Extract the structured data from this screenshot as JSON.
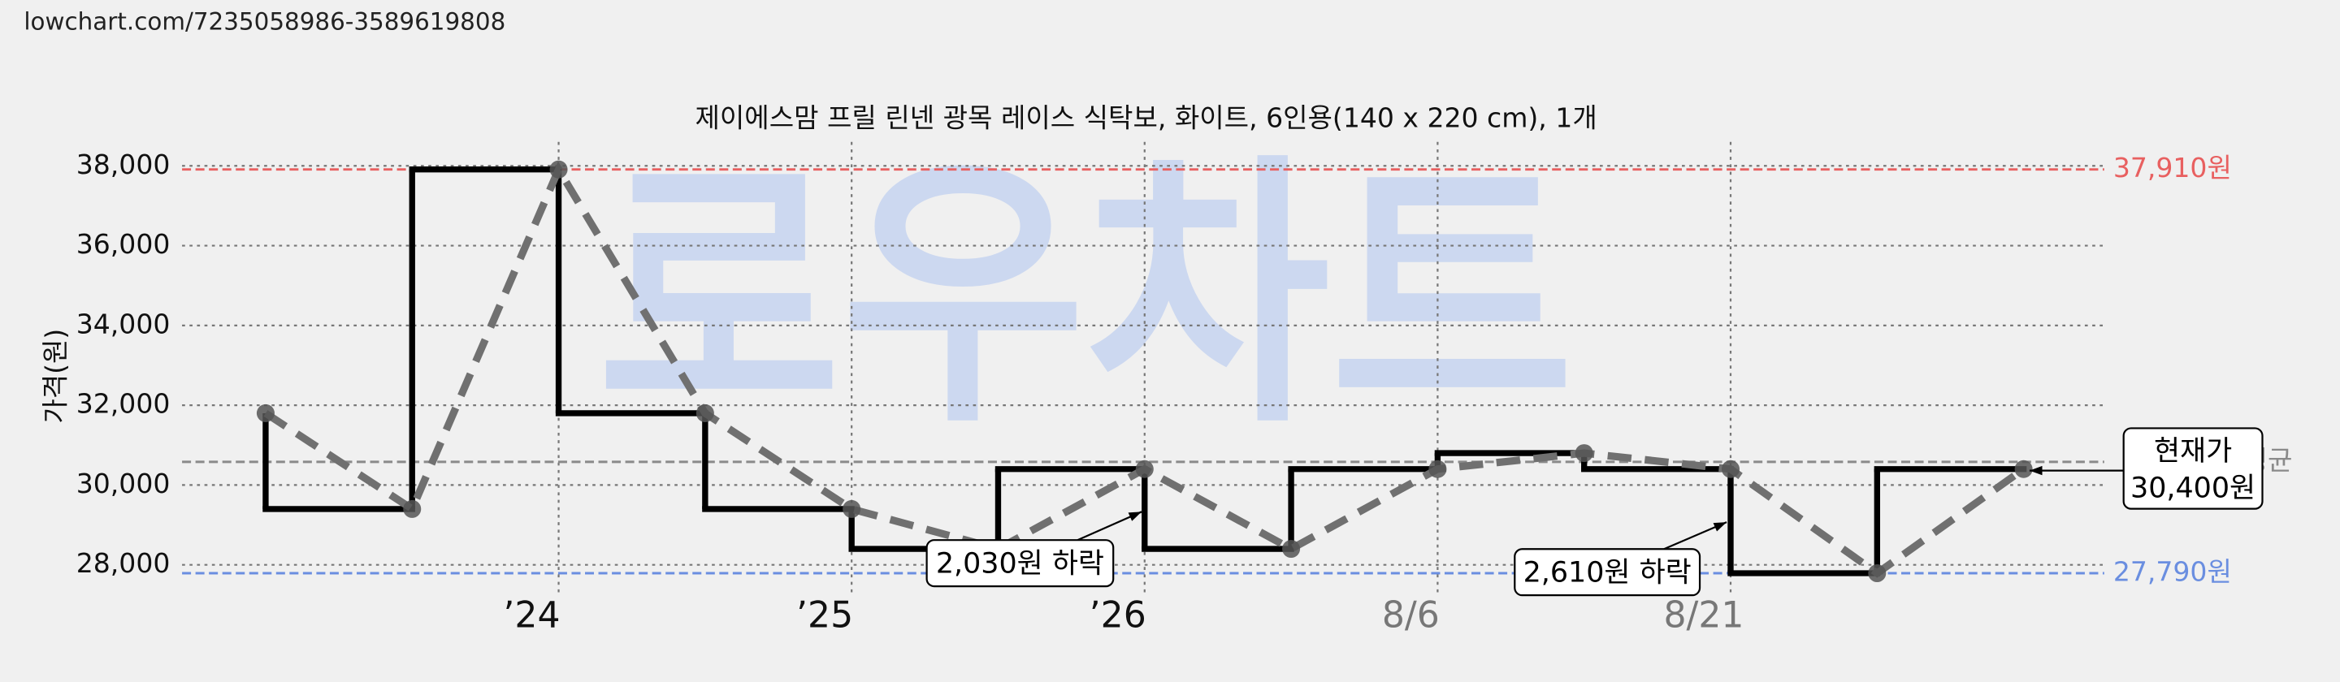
{
  "url": "lowchart.com/7235058986-3589619808",
  "chart_data": {
    "type": "price-step",
    "title": "제이에스맘 프릴 린넨 광목 레이스 식탁보, 화이트, 6인용(140 x 220 cm), 1개",
    "ylabel": "가격(원)",
    "watermark": "로우차트",
    "categories": [
      null,
      null,
      "’24",
      null,
      "’25",
      null,
      "’26",
      null,
      "8/6",
      null,
      "8/21",
      null,
      null
    ],
    "values": [
      31800,
      29400,
      37910,
      31800,
      29400,
      28400,
      30400,
      28400,
      30400,
      30800,
      30400,
      27790,
      30400
    ],
    "step_color": "#000000",
    "line_color": "#707070",
    "ylim": [
      27200,
      38600
    ],
    "yticks": [
      {
        "value": 28000,
        "label": "28,000"
      },
      {
        "value": 30000,
        "label": "30,000"
      },
      {
        "value": 32000,
        "label": "32,000"
      },
      {
        "value": 34000,
        "label": "34,000"
      },
      {
        "value": 36000,
        "label": "36,000"
      },
      {
        "value": 38000,
        "label": "38,000"
      }
    ],
    "grid": true,
    "reference_lines": [
      {
        "value": 37910,
        "label": "37,910원",
        "color": "#e86060"
      },
      {
        "value": 27790,
        "label": "27,790원",
        "color": "#6a8ee0"
      },
      {
        "value": 30580,
        "label": "평균",
        "color": "#8a8a8a"
      }
    ],
    "annotations": [
      {
        "text": "2,030원 하락"
      },
      {
        "text": "2,610원 하락"
      },
      {
        "lines": [
          "현재가",
          "30,400원"
        ]
      }
    ]
  }
}
